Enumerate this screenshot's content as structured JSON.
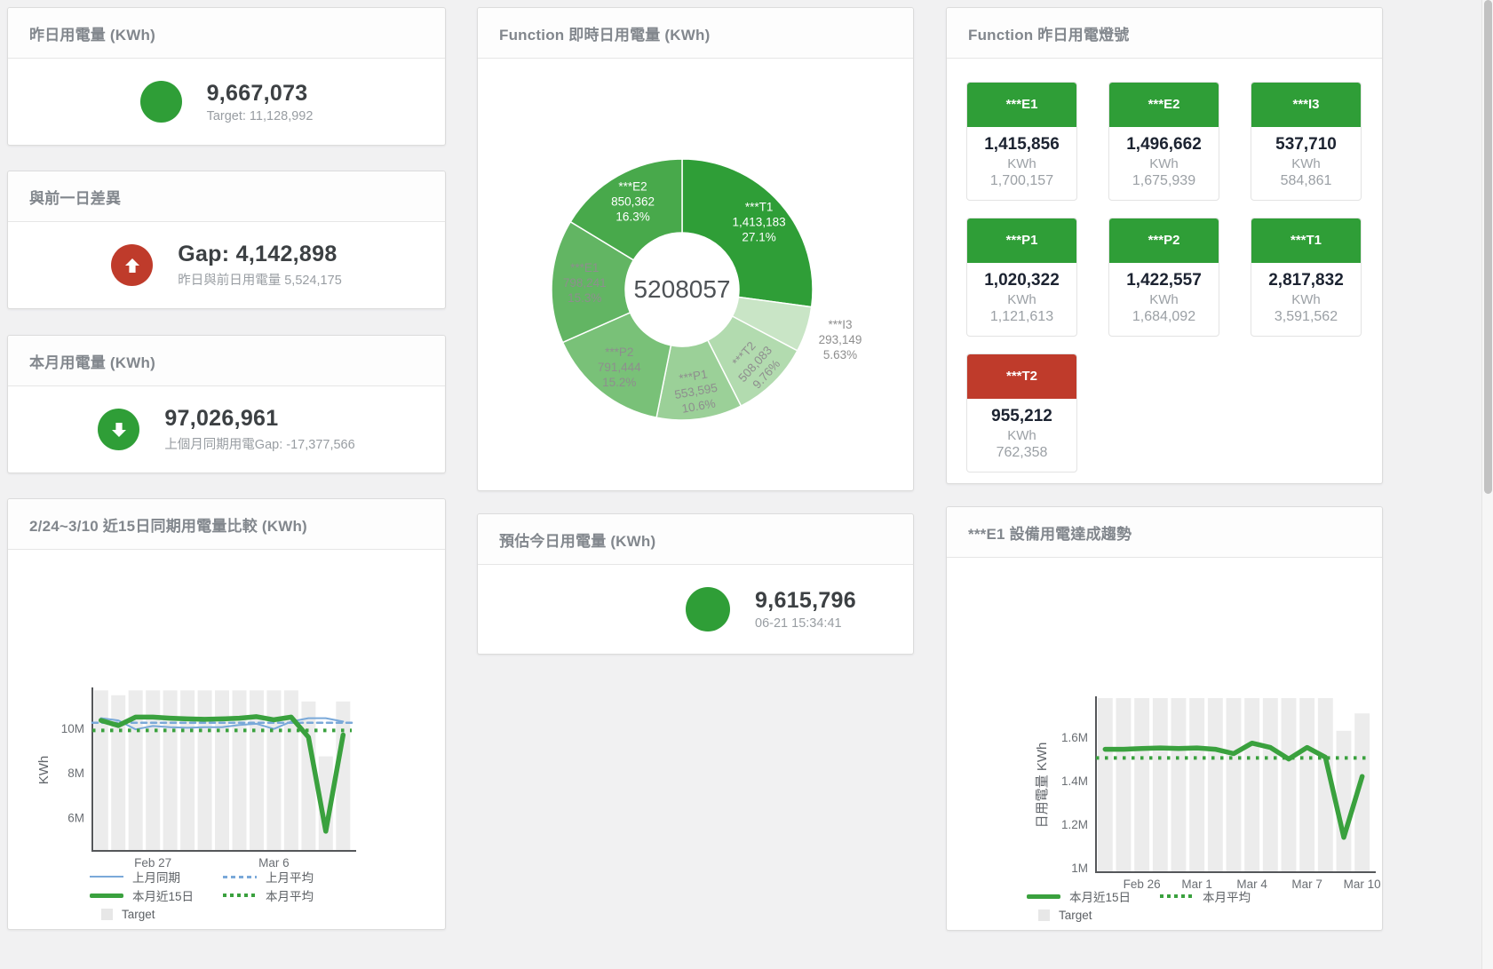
{
  "colors": {
    "green": "#2f9e37",
    "red": "#bf3b2b",
    "blue": "#7aa9d9",
    "chart_green": "#3aa13e",
    "bar_grey": "#ececec",
    "axis": "#55575a",
    "tick_text": "#6a6e73"
  },
  "panels": {
    "yesterday": {
      "title": "昨日用電量 (KWh)",
      "value": "9,667,073",
      "subtitle": "Target: 11,128,992"
    },
    "diff": {
      "title": "與前一日差異",
      "value": "Gap: 4,142,898",
      "subtitle": "昨日與前日用電量 5,524,175"
    },
    "month": {
      "title": "本月用電量 (KWh)",
      "value": "97,026,961",
      "subtitle": "上個月同期用電Gap: -17,377,566"
    },
    "estimate": {
      "title": "預估今日用電量 (KWh)",
      "value": "9,615,796",
      "subtitle": "06-21 15:34:41"
    },
    "donut": {
      "title": "Function 即時日用電量 (KWh)"
    },
    "lights": {
      "title": "Function 昨日用電燈號",
      "tiles": [
        {
          "label": "***E1",
          "value": "1,415,856",
          "unit": "KWh",
          "target": "1,700,157",
          "status": "green"
        },
        {
          "label": "***E2",
          "value": "1,496,662",
          "unit": "KWh",
          "target": "1,675,939",
          "status": "green"
        },
        {
          "label": "***I3",
          "value": "537,710",
          "unit": "KWh",
          "target": "584,861",
          "status": "green"
        },
        {
          "label": "***P1",
          "value": "1,020,322",
          "unit": "KWh",
          "target": "1,121,613",
          "status": "green"
        },
        {
          "label": "***P2",
          "value": "1,422,557",
          "unit": "KWh",
          "target": "1,684,092",
          "status": "green"
        },
        {
          "label": "***T1",
          "value": "2,817,832",
          "unit": "KWh",
          "target": "3,591,562",
          "status": "green"
        },
        {
          "label": "***T2",
          "value": "955,212",
          "unit": "KWh",
          "target": "762,358",
          "status": "red"
        }
      ]
    },
    "compare": {
      "title": "2/24~3/10 近15日同期用電量比較 (KWh)"
    },
    "e1trend": {
      "title": "***E1 設備用電達成趨勢"
    }
  },
  "chart_data": [
    {
      "id": "donut",
      "type": "pie",
      "title": "Function 即時日用電量 (KWh)",
      "center_total": "5208057",
      "slices": [
        {
          "name": "***T1",
          "value": 1413183,
          "display": "1,413,183",
          "pct": "27.1%",
          "color": "#2f9e37",
          "text_color": "#ffffff",
          "label_r": 115,
          "rot": 0
        },
        {
          "name": "***I3",
          "value": 293149,
          "display": "293,149",
          "pct": "5.63%",
          "color": "#c9e5c6",
          "text_color": "#8e8e8e",
          "outside": true
        },
        {
          "name": "***T2",
          "value": 508083,
          "display": "508,083",
          "pct": "9.76%",
          "color": "#b2dbaf",
          "text_color": "#8e8e8e",
          "label_r": 118,
          "rot": -48
        },
        {
          "name": "***P1",
          "value": 553595,
          "display": "553,595",
          "pct": "10.6%",
          "color": "#9bd098",
          "text_color": "#8e8e8e",
          "label_r": 116,
          "rot": -10
        },
        {
          "name": "***P2",
          "value": 791444,
          "display": "791,444",
          "pct": "15.2%",
          "color": "#79c178",
          "text_color": "#8e8e8e",
          "label_r": 113,
          "rot": 0
        },
        {
          "name": "***E1",
          "value": 798241,
          "display": "798,241",
          "pct": "15.3%",
          "color": "#62b563",
          "text_color": "#8e8e8e",
          "label_r": 110,
          "rot": 0
        },
        {
          "name": "***E2",
          "value": 850362,
          "display": "850,362",
          "pct": "16.3%",
          "color": "#48a94b",
          "text_color": "#ffffff",
          "label_r": 113,
          "rot": 0
        }
      ]
    },
    {
      "id": "compare",
      "type": "line+bar",
      "title": "2/24~3/10 近15日同期用電量比較 (KWh)",
      "ylabel": "KWh",
      "ylim": [
        4.5,
        11.75
      ],
      "yticks": [
        {
          "v": 6,
          "label": "6M"
        },
        {
          "v": 8,
          "label": "8M"
        },
        {
          "v": 10,
          "label": "10M"
        }
      ],
      "xticks": [
        {
          "i": 3,
          "label": "Feb 27"
        },
        {
          "i": 10,
          "label": "Mar 6"
        }
      ],
      "target_bars": [
        11.7,
        11.48,
        11.7,
        11.7,
        11.7,
        11.7,
        11.7,
        11.7,
        11.7,
        11.7,
        11.7,
        11.7,
        11.2,
        8.74,
        11.2
      ],
      "series": [
        {
          "name": "上月同期",
          "style": "thin",
          "values": [
            10.45,
            10.35,
            9.95,
            10.1,
            10.05,
            10.02,
            10.05,
            10.05,
            10.15,
            10.2,
            9.97,
            10.3,
            10.45,
            10.45,
            10.3
          ]
        },
        {
          "name": "上月平均",
          "style": "dashed",
          "avg": 10.25
        },
        {
          "name": "本月近15日",
          "style": "thick",
          "values": [
            10.35,
            10.12,
            10.5,
            10.5,
            10.45,
            10.42,
            10.4,
            10.42,
            10.45,
            10.52,
            10.38,
            10.5,
            9.6,
            5.38,
            9.7
          ]
        },
        {
          "name": "本月平均",
          "style": "dotted",
          "avg": 9.9
        }
      ],
      "legend": [
        {
          "label": "上月同期",
          "marker": "mk-blue-line"
        },
        {
          "label": "上月平均",
          "marker": "mk-blue-dash"
        },
        {
          "label": "本月近15日",
          "marker": "mk-green-line"
        },
        {
          "label": "本月平均",
          "marker": "mk-green-dot"
        },
        {
          "label": "Target",
          "marker": "mk-box"
        }
      ]
    },
    {
      "id": "e1trend",
      "type": "line+bar",
      "title": "***E1 設備用電達成趨勢",
      "ylabel": "日用電量 KWh",
      "ylim": [
        0.98,
        1.78
      ],
      "yticks": [
        {
          "v": 1,
          "label": "1M"
        },
        {
          "v": 1.2,
          "label": "1.2M"
        },
        {
          "v": 1.4,
          "label": "1.4M"
        },
        {
          "v": 1.6,
          "label": "1.6M"
        }
      ],
      "xticks": [
        {
          "i": 2,
          "label": "Feb 26"
        },
        {
          "i": 5,
          "label": "Mar 1"
        },
        {
          "i": 8,
          "label": "Mar 4"
        },
        {
          "i": 11,
          "label": "Mar 7"
        },
        {
          "i": 14,
          "label": "Mar 10"
        }
      ],
      "target_bars": [
        1.78,
        1.78,
        1.78,
        1.78,
        1.78,
        1.78,
        1.78,
        1.78,
        1.78,
        1.78,
        1.78,
        1.78,
        1.78,
        1.63,
        1.71
      ],
      "series": [
        {
          "name": "本月近15日",
          "style": "thick",
          "values": [
            1.545,
            1.545,
            1.548,
            1.551,
            1.548,
            1.551,
            1.545,
            1.525,
            1.573,
            1.553,
            1.5,
            1.553,
            1.508,
            1.14,
            1.42
          ]
        },
        {
          "name": "本月平均",
          "style": "dotted",
          "avg": 1.505
        }
      ],
      "legend": [
        {
          "label": "本月近15日",
          "marker": "mk-green-line"
        },
        {
          "label": "本月平均",
          "marker": "mk-green-dot"
        },
        {
          "label": "Target",
          "marker": "mk-box"
        }
      ]
    }
  ]
}
